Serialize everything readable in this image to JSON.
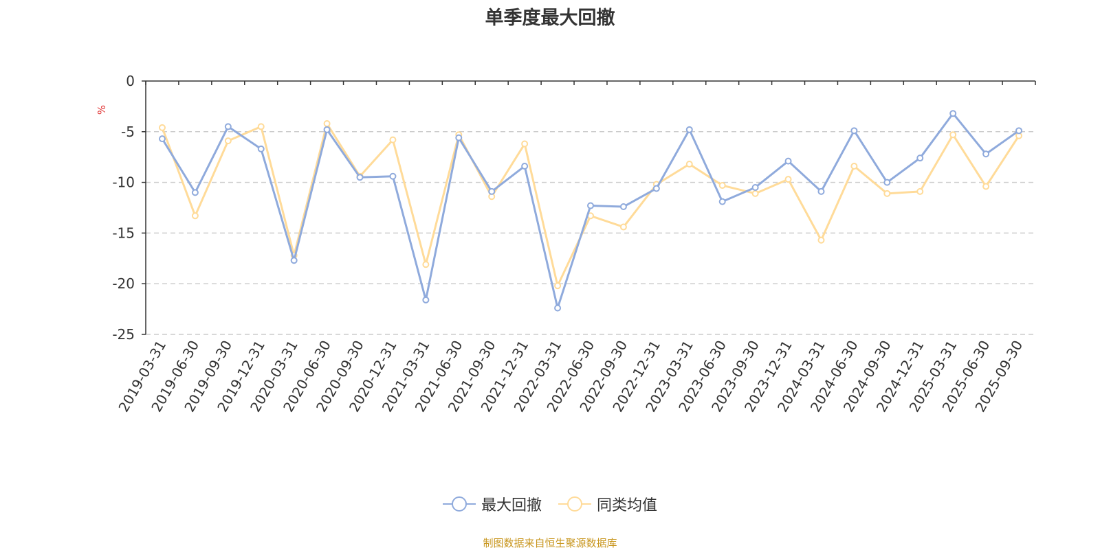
{
  "chart_data": {
    "type": "line",
    "title": "单季度最大回撤",
    "ylabel": "%",
    "ylim": [
      -25,
      0
    ],
    "yticks": [
      0,
      -5,
      -10,
      -15,
      -20,
      -25
    ],
    "grid": "horizontal dashed",
    "legend_position": "bottom-center",
    "categories": [
      "2019-03-31",
      "2019-06-30",
      "2019-09-30",
      "2019-12-31",
      "2020-03-31",
      "2020-06-30",
      "2020-09-30",
      "2020-12-31",
      "2021-03-31",
      "2021-06-30",
      "2021-09-30",
      "2021-12-31",
      "2022-03-31",
      "2022-06-30",
      "2022-09-30",
      "2022-12-31",
      "2023-03-31",
      "2023-06-30",
      "2023-09-30",
      "2023-12-31",
      "2024-03-31",
      "2024-06-30",
      "2024-09-30",
      "2024-12-31",
      "2025-03-31",
      "2025-06-30",
      "2025-09-30"
    ],
    "series": [
      {
        "name": "最大回撤",
        "color": "#8faadc",
        "values": [
          -5.7,
          -11.0,
          -4.5,
          -6.7,
          -17.7,
          -4.8,
          -9.5,
          -9.4,
          -21.6,
          -5.6,
          -10.9,
          -8.4,
          -22.4,
          -12.3,
          -12.4,
          -10.6,
          -4.8,
          -11.9,
          -10.5,
          -7.9,
          -10.9,
          -4.9,
          -10.0,
          -7.6,
          -3.2,
          -7.2,
          -4.9
        ]
      },
      {
        "name": "同类均值",
        "color": "#ffdb99",
        "values": [
          -4.6,
          -13.3,
          -5.9,
          -4.5,
          -17.2,
          -4.2,
          -9.4,
          -5.8,
          -18.1,
          -5.3,
          -11.4,
          -6.2,
          -20.2,
          -13.3,
          -14.4,
          -10.2,
          -8.2,
          -10.3,
          -11.1,
          -9.7,
          -15.7,
          -8.4,
          -11.1,
          -10.9,
          -5.3,
          -10.4,
          -5.4
        ]
      }
    ]
  },
  "source_note": "制图数据来自恒生聚源数据库"
}
